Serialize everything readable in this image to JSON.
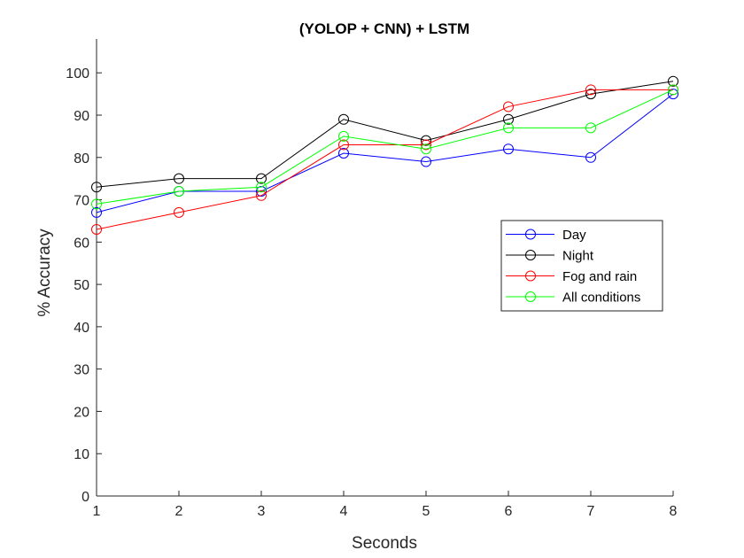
{
  "chart_data": {
    "type": "line",
    "title": "(YOLOP + CNN) + LSTM",
    "xlabel": "Seconds",
    "ylabel": "% Accuracy",
    "x": [
      1,
      2,
      3,
      4,
      5,
      6,
      7,
      8
    ],
    "xlim": [
      1,
      8
    ],
    "ylim": [
      0,
      108
    ],
    "xticks": [
      1,
      2,
      3,
      4,
      5,
      6,
      7,
      8
    ],
    "yticks": [
      0,
      10,
      20,
      30,
      40,
      50,
      60,
      70,
      80,
      90,
      100
    ],
    "grid": false,
    "legend_position": "right",
    "marker": "open-circle",
    "series": [
      {
        "name": "Day",
        "color": "#0000ff",
        "values": [
          67,
          72,
          72,
          81,
          79,
          82,
          80,
          95
        ]
      },
      {
        "name": "Night",
        "color": "#000000",
        "values": [
          73,
          75,
          75,
          89,
          84,
          89,
          95,
          98
        ]
      },
      {
        "name": "Fog and rain",
        "color": "#ff0000",
        "values": [
          63,
          67,
          71,
          83,
          83,
          92,
          96,
          96
        ]
      },
      {
        "name": "All conditions",
        "color": "#00ff00",
        "values": [
          69,
          72,
          73,
          85,
          82,
          87,
          87,
          96
        ]
      }
    ]
  }
}
